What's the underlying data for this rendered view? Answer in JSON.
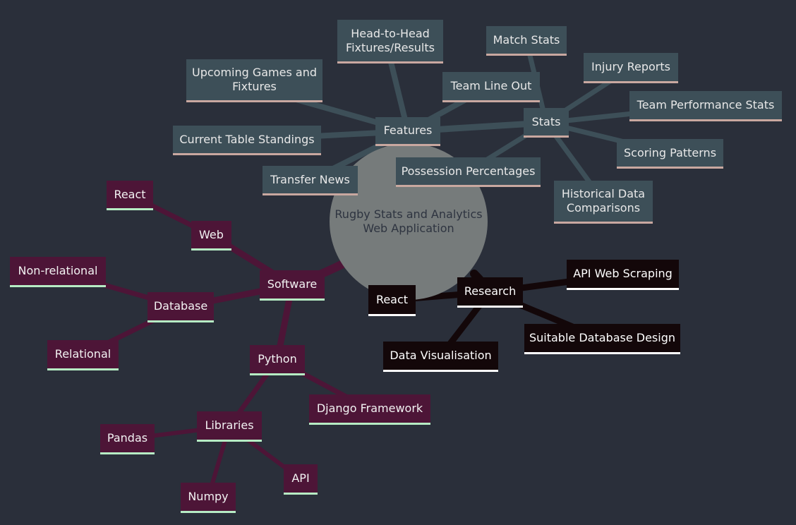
{
  "root": {
    "line1": "Rugby Stats and Analytics",
    "line2": "Web Application"
  },
  "features": {
    "label": "Features",
    "head_to_head": {
      "line1": "Head-to-Head",
      "line2": "Fixtures/Results"
    },
    "upcoming": {
      "line1": "Upcoming Games and",
      "line2": "Fixtures"
    },
    "team_line_out": "Team Line Out",
    "current_table": "Current Table Standings",
    "transfer_news": "Transfer News"
  },
  "stats": {
    "label": "Stats",
    "match_stats": "Match Stats",
    "injury_reports": "Injury Reports",
    "team_performance": "Team Performance Stats",
    "scoring_patterns": "Scoring Patterns",
    "historical": {
      "line1": "Historical Data",
      "line2": "Comparisons"
    },
    "possession": "Possession Percentages"
  },
  "software": {
    "label": "Software",
    "web": "Web",
    "react": "React",
    "database": "Database",
    "non_relational": "Non-relational",
    "relational": "Relational",
    "python": "Python",
    "django": "Django Framework",
    "libraries": "Libraries",
    "pandas": "Pandas",
    "numpy": "Numpy",
    "api": "API"
  },
  "research": {
    "label": "Research",
    "react": "React",
    "api_web_scraping": "API Web Scraping",
    "suitable_db": "Suitable Database Design",
    "data_vis": "Data Visualisation"
  },
  "colors": {
    "background": "#2a2f3a",
    "root_fill": "#767b7b",
    "stats_branch": "#3d4f58",
    "software_branch": "#4d1537",
    "research_branch": "#130709"
  }
}
